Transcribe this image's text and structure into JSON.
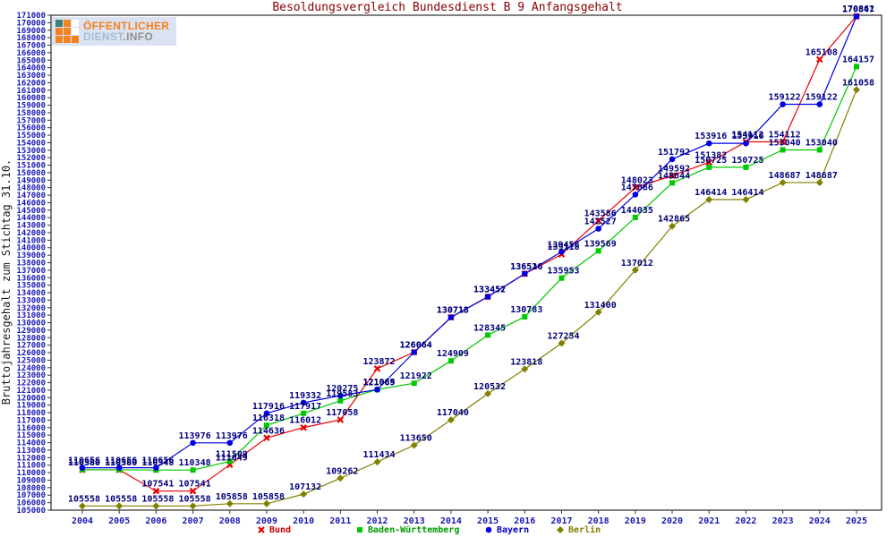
{
  "logo": {
    "line1": "ÖFFENTLICHER",
    "line2_part1": "DIENST",
    "line2_part2": ".INFO",
    "orange": "#f5821f",
    "teal": "#3f7f7f",
    "white": "#ffffff",
    "bg": "#dbe3f2",
    "grid": [
      "teal",
      "orange",
      "white",
      "orange",
      "orange",
      "white",
      "orange",
      "orange",
      "orange"
    ]
  },
  "axis": {
    "tick_label_color": "#1a1ab4",
    "data_label_color": "#00007d",
    "title_color": "#8b0000",
    "line_color": "#000000"
  },
  "chart_data": {
    "type": "line",
    "title": "Besoldungsvergleich Bundesdienst B 9 Anfangsgehalt",
    "ylabel": "Bruttojahresgehalt zum Stichtag 31.10.",
    "xlabel": "",
    "ylim": [
      105000,
      171000
    ],
    "ytick_step": 1000,
    "grid": false,
    "legend_position": "bottom",
    "x": [
      2004,
      2005,
      2006,
      2007,
      2008,
      2009,
      2010,
      2011,
      2012,
      2013,
      2014,
      2015,
      2016,
      2017,
      2018,
      2019,
      2020,
      2021,
      2022,
      2023,
      2024,
      2025
    ],
    "series": [
      {
        "name": "Bund",
        "color": "#e60000",
        "legend_color": "#cc0000",
        "marker": "x",
        "values": [
          110380,
          110380,
          107541,
          107541,
          111049,
          114636,
          116012,
          117058,
          123872,
          126064,
          130713,
          133452,
          136516,
          139118,
          143586,
          148023,
          149592,
          151382,
          154112,
          154112,
          165108,
          170861
        ]
      },
      {
        "name": "Baden-Württemberg",
        "color": "#00c800",
        "legend_color": "#009900",
        "marker": "square",
        "values": [
          110380,
          110380,
          110348,
          110348,
          111509,
          116318,
          117917,
          119583,
          121085,
          121922,
          124909,
          128345,
          130783,
          135953,
          139569,
          144035,
          148644,
          150725,
          150725,
          153040,
          153040,
          164157
        ]
      },
      {
        "name": "Bayern",
        "color": "#0000e0",
        "legend_color": "#0000cc",
        "marker": "circle",
        "values": [
          110656,
          110656,
          110656,
          113976,
          113976,
          117916,
          119332,
          120275,
          121069,
          126064,
          130718,
          133457,
          136526,
          139458,
          142527,
          147086,
          151792,
          153916,
          153916,
          159122,
          159122,
          170847
        ]
      },
      {
        "name": "Berlin",
        "color": "#808000",
        "legend_color": "#808000",
        "marker": "diamond",
        "values": [
          105558,
          105558,
          105558,
          105558,
          105858,
          105858,
          107132,
          109262,
          111434,
          113650,
          117040,
          120532,
          123818,
          127254,
          131400,
          137012,
          142865,
          146414,
          146414,
          148687,
          148687,
          161058
        ]
      }
    ]
  }
}
